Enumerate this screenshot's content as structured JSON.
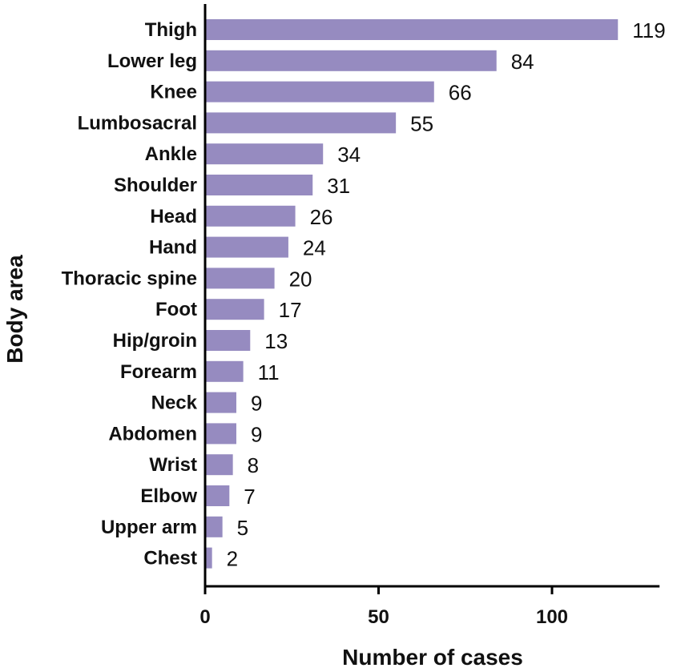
{
  "chart_data": {
    "type": "bar",
    "orientation": "horizontal",
    "categories": [
      "Thigh",
      "Lower leg",
      "Knee",
      "Lumbosacral",
      "Ankle",
      "Shoulder",
      "Head",
      "Hand",
      "Thoracic spine",
      "Foot",
      "Hip/groin",
      "Forearm",
      "Neck",
      "Abdomen",
      "Wrist",
      "Elbow",
      "Upper arm",
      "Chest"
    ],
    "values": [
      119,
      84,
      66,
      55,
      34,
      31,
      26,
      24,
      20,
      17,
      13,
      11,
      9,
      9,
      8,
      7,
      5,
      2
    ],
    "value_labels": [
      "119",
      "84",
      "66",
      "55",
      "34",
      "31",
      "26",
      "24",
      "20",
      "17",
      "13",
      "11",
      "9",
      "9",
      "8",
      "7",
      "5",
      "2"
    ],
    "xlabel": "Number of cases",
    "ylabel": "Body area",
    "xlim": [
      0,
      131
    ],
    "xticks": [
      0,
      50,
      100
    ],
    "xtick_labels": [
      "0",
      "50",
      "100"
    ],
    "grid": false,
    "bar_color": "#968bc0",
    "axis_color": "#000000"
  }
}
